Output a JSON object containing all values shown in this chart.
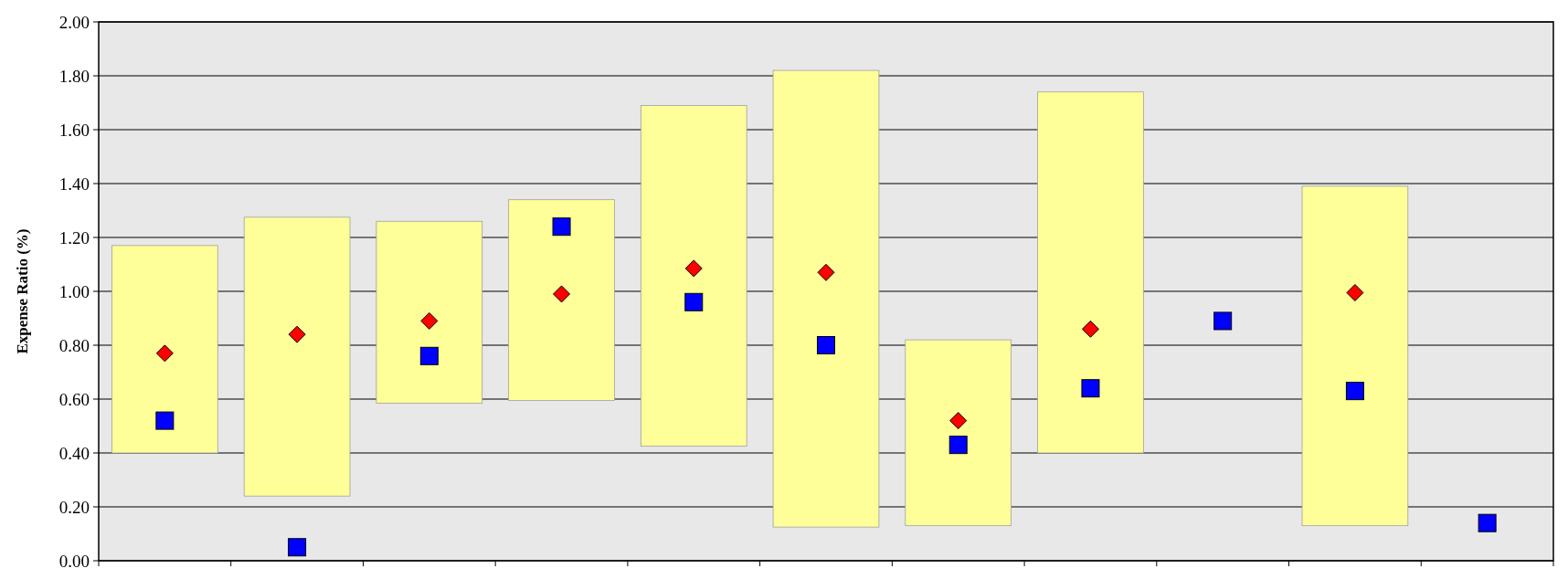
{
  "chart_data": {
    "type": "bar",
    "ylabel": "Expense Ratio (%)",
    "categories": [
      null,
      null,
      null,
      null,
      null,
      null,
      null,
      null,
      null,
      null,
      null
    ],
    "ylim": [
      0,
      2
    ],
    "yticks": [
      {
        "value": 0,
        "label": "0.00"
      },
      {
        "value": 0.2,
        "label": "0.20"
      },
      {
        "value": 0.4,
        "label": "0.40"
      },
      {
        "value": 0.6,
        "label": "0.60"
      },
      {
        "value": 0.8,
        "label": "0.80"
      },
      {
        "value": 1,
        "label": "1.00"
      },
      {
        "value": 1.2,
        "label": "1.20"
      },
      {
        "value": 1.4,
        "label": "1.40"
      },
      {
        "value": 1.6,
        "label": "1.60"
      },
      {
        "value": 1.8,
        "label": "1.80"
      },
      {
        "value": 2,
        "label": "2.00"
      }
    ],
    "grid": "y",
    "series": [
      {
        "color": "#ffff99",
        "values": [
          0.77,
          1.035,
          0.675,
          0.745,
          1.265,
          1.695,
          0.69,
          1.34,
          null,
          1.26,
          null
        ],
        "base": [
          0.4,
          0.24,
          0.585,
          0.595,
          0.425,
          0.125,
          0.13,
          0.4,
          null,
          0.13,
          null
        ]
      },
      {
        "type": "scatter",
        "color": "#ff0000",
        "marker": "diamond",
        "values": [
          0.77,
          0.84,
          0.89,
          0.99,
          1.085,
          1.07,
          0.52,
          0.86,
          null,
          0.995,
          null
        ]
      },
      {
        "type": "scatter",
        "color": "#0000ff",
        "marker": "square",
        "values": [
          0.52,
          0.05,
          0.76,
          1.24,
          0.96,
          0.8,
          0.43,
          0.64,
          0.89,
          0.63,
          0.14
        ]
      }
    ]
  }
}
